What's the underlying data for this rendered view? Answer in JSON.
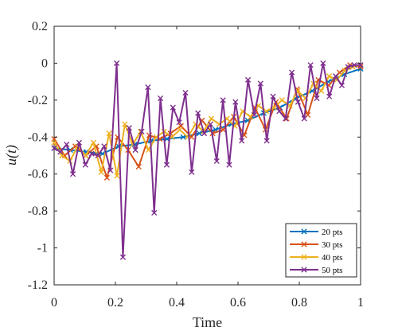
{
  "chart_data": {
    "type": "line",
    "title": "",
    "xlabel": "Time",
    "ylabel": "u(t)",
    "xlim": [
      0,
      1
    ],
    "ylim": [
      -1.2,
      0.2
    ],
    "xticks": [
      "0",
      "0.2",
      "0.4",
      "0.6",
      "0.8",
      "1"
    ],
    "yticks": [
      "0.2",
      "0",
      "-0.2",
      "-0.4",
      "-0.6",
      "-0.8",
      "-1",
      "-1.2"
    ],
    "xtick_values": [
      0,
      0.2,
      0.4,
      0.6,
      0.8,
      1
    ],
    "ytick_values": [
      0.2,
      0,
      -0.2,
      -0.4,
      -0.6,
      -0.8,
      -1,
      -1.2
    ],
    "grid": false,
    "legend_position": "bottom-right",
    "marker": "x",
    "series": [
      {
        "name": "20 pts",
        "color": "#0072BD",
        "x": [
          0,
          0.0526,
          0.1053,
          0.1579,
          0.2105,
          0.2632,
          0.3158,
          0.3684,
          0.4211,
          0.4737,
          0.5263,
          0.5789,
          0.6316,
          0.6842,
          0.7368,
          0.7895,
          0.8421,
          0.8947,
          0.9474,
          1
        ],
        "y": [
          -0.46,
          -0.47,
          -0.48,
          -0.49,
          -0.45,
          -0.44,
          -0.42,
          -0.41,
          -0.4,
          -0.38,
          -0.36,
          -0.33,
          -0.31,
          -0.27,
          -0.24,
          -0.19,
          -0.15,
          -0.1,
          -0.06,
          -0.03
        ]
      },
      {
        "name": "30 pts",
        "color": "#D95319",
        "x": [
          0,
          0.0345,
          0.069,
          0.1034,
          0.1379,
          0.1724,
          0.2069,
          0.2414,
          0.2759,
          0.3103,
          0.3448,
          0.3793,
          0.4138,
          0.4483,
          0.4828,
          0.5172,
          0.5517,
          0.5862,
          0.6207,
          0.6552,
          0.6897,
          0.7241,
          0.7586,
          0.7931,
          0.8276,
          0.8621,
          0.8966,
          0.931,
          0.9655,
          1
        ],
        "y": [
          -0.41,
          -0.5,
          -0.45,
          -0.5,
          -0.45,
          -0.62,
          -0.4,
          -0.47,
          -0.56,
          -0.39,
          -0.41,
          -0.38,
          -0.34,
          -0.4,
          -0.31,
          -0.38,
          -0.36,
          -0.29,
          -0.39,
          -0.24,
          -0.36,
          -0.21,
          -0.3,
          -0.14,
          -0.28,
          -0.09,
          -0.12,
          -0.05,
          -0.01,
          -0.02
        ]
      },
      {
        "name": "40 pts",
        "color": "#EDB120",
        "x": [
          0,
          0.0256,
          0.0513,
          0.0769,
          0.1026,
          0.1282,
          0.1538,
          0.1795,
          0.2051,
          0.2308,
          0.2564,
          0.2821,
          0.3077,
          0.3333,
          0.359,
          0.3846,
          0.4103,
          0.4359,
          0.4615,
          0.4872,
          0.5128,
          0.5385,
          0.5641,
          0.5897,
          0.6154,
          0.641,
          0.6667,
          0.6923,
          0.7179,
          0.7436,
          0.7692,
          0.7949,
          0.8205,
          0.8462,
          0.8718,
          0.8974,
          0.9231,
          0.9487,
          0.9744,
          1
        ],
        "y": [
          -0.43,
          -0.5,
          -0.53,
          -0.45,
          -0.5,
          -0.43,
          -0.59,
          -0.38,
          -0.61,
          -0.33,
          -0.44,
          -0.37,
          -0.47,
          -0.4,
          -0.37,
          -0.4,
          -0.36,
          -0.4,
          -0.33,
          -0.37,
          -0.3,
          -0.33,
          -0.3,
          -0.34,
          -0.26,
          -0.29,
          -0.23,
          -0.26,
          -0.24,
          -0.2,
          -0.23,
          -0.15,
          -0.19,
          -0.11,
          -0.15,
          -0.07,
          -0.09,
          -0.04,
          -0.02,
          -0.01
        ]
      },
      {
        "name": "50 pts",
        "color": "#7E2F8E",
        "x": [
          0,
          0.0204,
          0.0408,
          0.0612,
          0.0816,
          0.102,
          0.1224,
          0.1429,
          0.1633,
          0.1837,
          0.2041,
          0.2245,
          0.2449,
          0.2653,
          0.2857,
          0.3061,
          0.3265,
          0.3469,
          0.3673,
          0.3878,
          0.4082,
          0.4286,
          0.449,
          0.4694,
          0.4898,
          0.5102,
          0.5306,
          0.551,
          0.5714,
          0.5918,
          0.6122,
          0.6327,
          0.6531,
          0.6735,
          0.6939,
          0.7143,
          0.7347,
          0.7551,
          0.7755,
          0.7959,
          0.8163,
          0.8367,
          0.8571,
          0.8776,
          0.898,
          0.9184,
          0.9388,
          0.9592,
          0.9796,
          1
        ],
        "y": [
          -0.46,
          -0.48,
          -0.44,
          -0.6,
          -0.43,
          -0.55,
          -0.49,
          -0.5,
          -0.45,
          -0.58,
          0.0,
          -1.05,
          -0.35,
          -0.47,
          -0.37,
          -0.13,
          -0.81,
          -0.19,
          -0.55,
          -0.24,
          -0.32,
          -0.16,
          -0.59,
          -0.27,
          -0.38,
          -0.33,
          -0.53,
          -0.2,
          -0.55,
          -0.21,
          -0.42,
          -0.09,
          -0.28,
          -0.11,
          -0.42,
          -0.18,
          -0.26,
          -0.3,
          -0.05,
          -0.21,
          -0.3,
          -0.01,
          -0.19,
          0.0,
          -0.18,
          -0.07,
          -0.12,
          -0.02,
          -0.01,
          -0.01
        ]
      }
    ]
  }
}
